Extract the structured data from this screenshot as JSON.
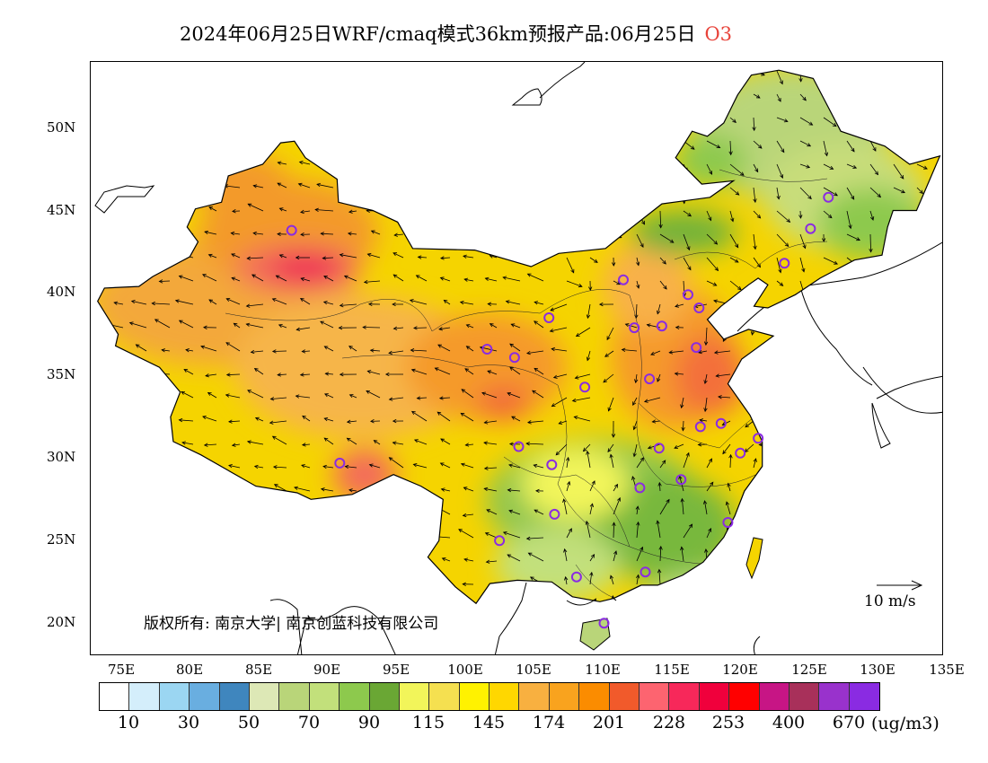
{
  "title": {
    "text": "2024年06月25日WRF/cmaq模式36km预报产品:06月25日",
    "species": "O3",
    "species_color": "#e8433a"
  },
  "map": {
    "lon_range": [
      73,
      135
    ],
    "lat_range": [
      18,
      54
    ],
    "lat_labels": [
      "50N",
      "45N",
      "40N",
      "35N",
      "30N",
      "25N",
      "20N"
    ],
    "lon_labels": [
      "75E",
      "80E",
      "85E",
      "90E",
      "95E",
      "100E",
      "105E",
      "110E",
      "115E",
      "120E",
      "125E",
      "130E",
      "135E"
    ]
  },
  "copyright": "版权所有: 南京大学| 南京创蓝科技有限公司",
  "wind_key": "10 m/s",
  "legend": {
    "unit": "(ug/m3)",
    "colors": [
      "#ffffff",
      "#d4eefb",
      "#9bd6f2",
      "#69aee0",
      "#3f86be",
      "#dde8b6",
      "#b9d579",
      "#c2e07b",
      "#8dc94d",
      "#6aa734",
      "#f2f55a",
      "#f5e050",
      "#fff200",
      "#ffd700",
      "#f8b040",
      "#f9a31e",
      "#fb8c00",
      "#f15a2b",
      "#fd6470",
      "#f7285a",
      "#f0003c",
      "#ff0000",
      "#c71585",
      "#a8305a",
      "#9932cc",
      "#8a2be2"
    ],
    "labels": [
      "10",
      "30",
      "50",
      "70",
      "90",
      "115",
      "145",
      "174",
      "201",
      "228",
      "253",
      "400",
      "670"
    ]
  },
  "sites": [
    [
      87.6,
      43.8
    ],
    [
      101.8,
      36.6
    ],
    [
      103.8,
      36.1
    ],
    [
      106.3,
      38.5
    ],
    [
      108.9,
      34.3
    ],
    [
      111.7,
      40.8
    ],
    [
      112.5,
      37.9
    ],
    [
      114.5,
      38.0
    ],
    [
      116.4,
      39.9
    ],
    [
      117.2,
      39.1
    ],
    [
      117.0,
      36.7
    ],
    [
      113.6,
      34.8
    ],
    [
      117.3,
      31.9
    ],
    [
      118.8,
      32.1
    ],
    [
      121.5,
      31.2
    ],
    [
      120.2,
      30.3
    ],
    [
      114.3,
      30.6
    ],
    [
      112.9,
      28.2
    ],
    [
      115.9,
      28.7
    ],
    [
      119.3,
      26.1
    ],
    [
      113.3,
      23.1
    ],
    [
      108.3,
      22.8
    ],
    [
      106.7,
      26.6
    ],
    [
      102.7,
      25.0
    ],
    [
      104.1,
      30.7
    ],
    [
      106.5,
      29.6
    ],
    [
      91.1,
      29.7
    ],
    [
      110.3,
      20.0
    ],
    [
      123.4,
      41.8
    ],
    [
      125.3,
      43.9
    ],
    [
      126.6,
      45.8
    ]
  ]
}
